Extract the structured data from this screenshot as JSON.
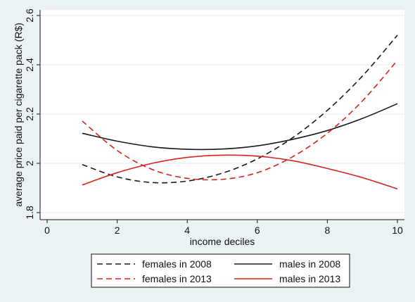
{
  "chart_data": {
    "type": "line",
    "title": "",
    "xlabel": "income deciles",
    "ylabel": "average price paid per cigarette pack (R$)",
    "xlim": [
      0,
      10
    ],
    "ylim": [
      1.8,
      2.6
    ],
    "xticks": [
      0,
      2,
      4,
      6,
      8,
      10
    ],
    "yticks": [
      1.8,
      2,
      2.2,
      2.4,
      2.6
    ],
    "xtick_labels": [
      "0",
      "2",
      "4",
      "6",
      "8",
      "10"
    ],
    "ytick_labels": [
      "1.8",
      "2",
      "2.2",
      "2.4",
      "2.6"
    ],
    "grid": "horizontal",
    "legend_position": "bottom",
    "series": [
      {
        "name": "females in 2008",
        "color": "#1a1a1a",
        "dash": "dashed",
        "x": [
          1,
          2,
          3,
          4,
          5,
          6,
          7,
          8,
          9,
          10
        ],
        "y": [
          1.995,
          1.945,
          1.922,
          1.928,
          1.96,
          2.018,
          2.103,
          2.215,
          2.354,
          2.52
        ]
      },
      {
        "name": "males in 2008",
        "color": "#1a1a1a",
        "dash": "solid",
        "x": [
          1,
          2,
          3,
          4,
          5,
          6,
          7,
          8,
          9,
          10
        ],
        "y": [
          2.122,
          2.09,
          2.067,
          2.057,
          2.058,
          2.071,
          2.097,
          2.133,
          2.182,
          2.242
        ]
      },
      {
        "name": "females in 2013",
        "color": "#d7231e",
        "dash": "dashed",
        "x": [
          1,
          2,
          3,
          4,
          5,
          6,
          7,
          8,
          9,
          10
        ],
        "y": [
          2.172,
          2.052,
          1.975,
          1.939,
          1.935,
          1.962,
          2.026,
          2.122,
          2.253,
          2.418
        ]
      },
      {
        "name": "males in 2013",
        "color": "#d7231e",
        "dash": "solid",
        "x": [
          1,
          2,
          3,
          4,
          5,
          6,
          7,
          8,
          9,
          10
        ],
        "y": [
          1.912,
          1.962,
          2.0,
          2.024,
          2.033,
          2.029,
          2.011,
          1.979,
          1.942,
          1.896
        ]
      }
    ]
  }
}
